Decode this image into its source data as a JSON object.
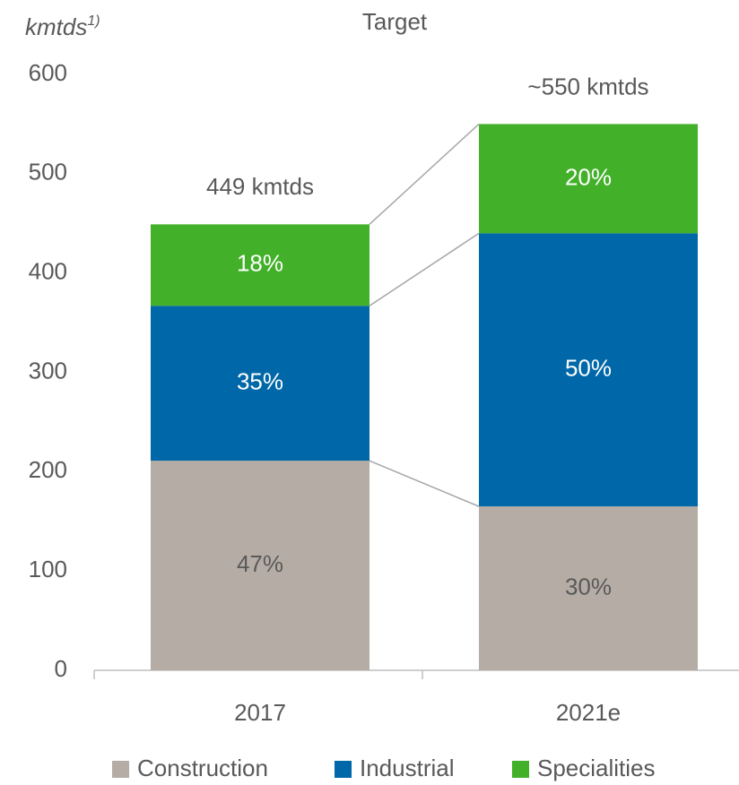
{
  "chart_data": {
    "type": "stacked_bar",
    "title": "Target",
    "y_label": "kmtds",
    "y_label_note": "1)",
    "categories": [
      "2017",
      "2021e"
    ],
    "series": [
      {
        "name": "Construction",
        "color": "#b5ada5",
        "label_color": "#595959",
        "values": [
          211,
          165
        ],
        "value_labels": [
          "47%",
          "30%"
        ]
      },
      {
        "name": "Industrial",
        "color": "#0067a8",
        "label_color": "#ffffff",
        "values": [
          156,
          275
        ],
        "value_labels": [
          "35%",
          "50%"
        ]
      },
      {
        "name": "Specialities",
        "color": "#43b02a",
        "label_color": "#ffffff",
        "values": [
          82,
          110
        ],
        "value_labels": [
          "18%",
          "20%"
        ]
      }
    ],
    "total_labels": [
      "449 kmtds",
      "~550 kmtds"
    ],
    "ylim": [
      0,
      600
    ],
    "yticks": [
      0,
      100,
      200,
      300,
      400,
      500,
      600
    ],
    "grid": false,
    "legend": "bottom"
  }
}
